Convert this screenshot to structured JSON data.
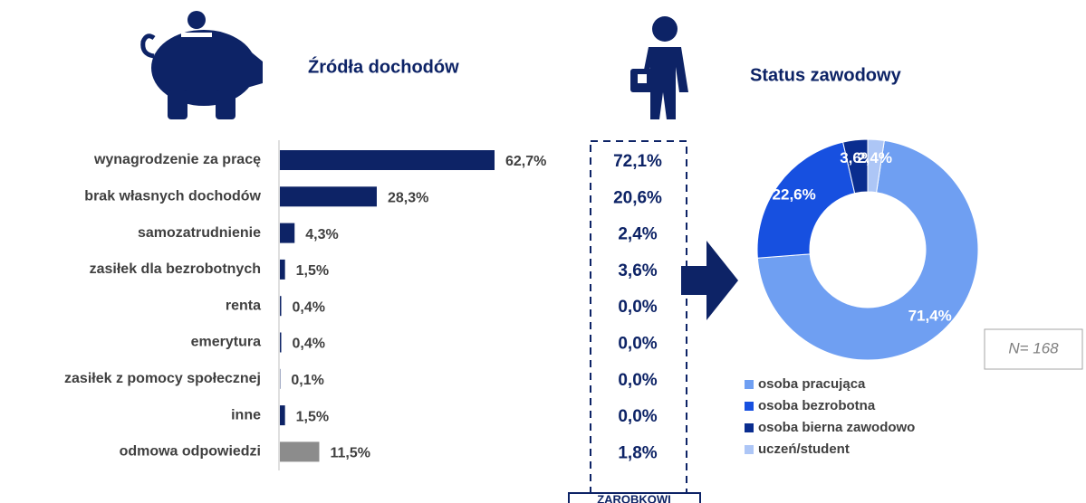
{
  "chart_data": [
    {
      "type": "bar",
      "title": "Źródła dochodów",
      "categories": [
        "wynagrodzenie za pracę",
        "brak własnych dochodów",
        "samozatrudnienie",
        "zasiłek dla bezrobotnych",
        "renta",
        "emerytura",
        "zasiłek z pomocy społecznej",
        "inne",
        "odmowa odpowiedzi"
      ],
      "values": [
        62.7,
        28.3,
        4.3,
        1.5,
        0.4,
        0.4,
        0.1,
        1.5,
        11.5
      ],
      "value_labels": [
        "62,7%",
        "28,3%",
        "4,3%",
        "1,5%",
        "0,4%",
        "0,4%",
        "0,1%",
        "1,5%",
        "11,5%"
      ],
      "colors": [
        "#0d2366",
        "#0d2366",
        "#0d2366",
        "#0d2366",
        "#0d2366",
        "#0d2366",
        "#0d2366",
        "#0d2366",
        "#8c8c8c"
      ]
    },
    {
      "type": "pie",
      "title": "Status zawodowy",
      "categories": [
        "osoba pracująca",
        "osoba bezrobotna",
        "osoba bierna zawodowo",
        "uczeń/student"
      ],
      "values": [
        71.4,
        22.6,
        3.6,
        2.4
      ],
      "value_labels": [
        "71,4%",
        "22,6%",
        "3,6%",
        "2,4%"
      ],
      "colors": [
        "#6f9ff2",
        "#1750e0",
        "#0a2d8f",
        "#adc6f6"
      ],
      "annotation": "N= 168"
    }
  ],
  "column": {
    "cells": [
      "72,1%",
      "20,6%",
      "2,4%",
      "3,6%",
      "0,0%",
      "0,0%",
      "0,0%",
      "0,0%",
      "1,8%"
    ],
    "label": "ZAROBKOWI"
  }
}
